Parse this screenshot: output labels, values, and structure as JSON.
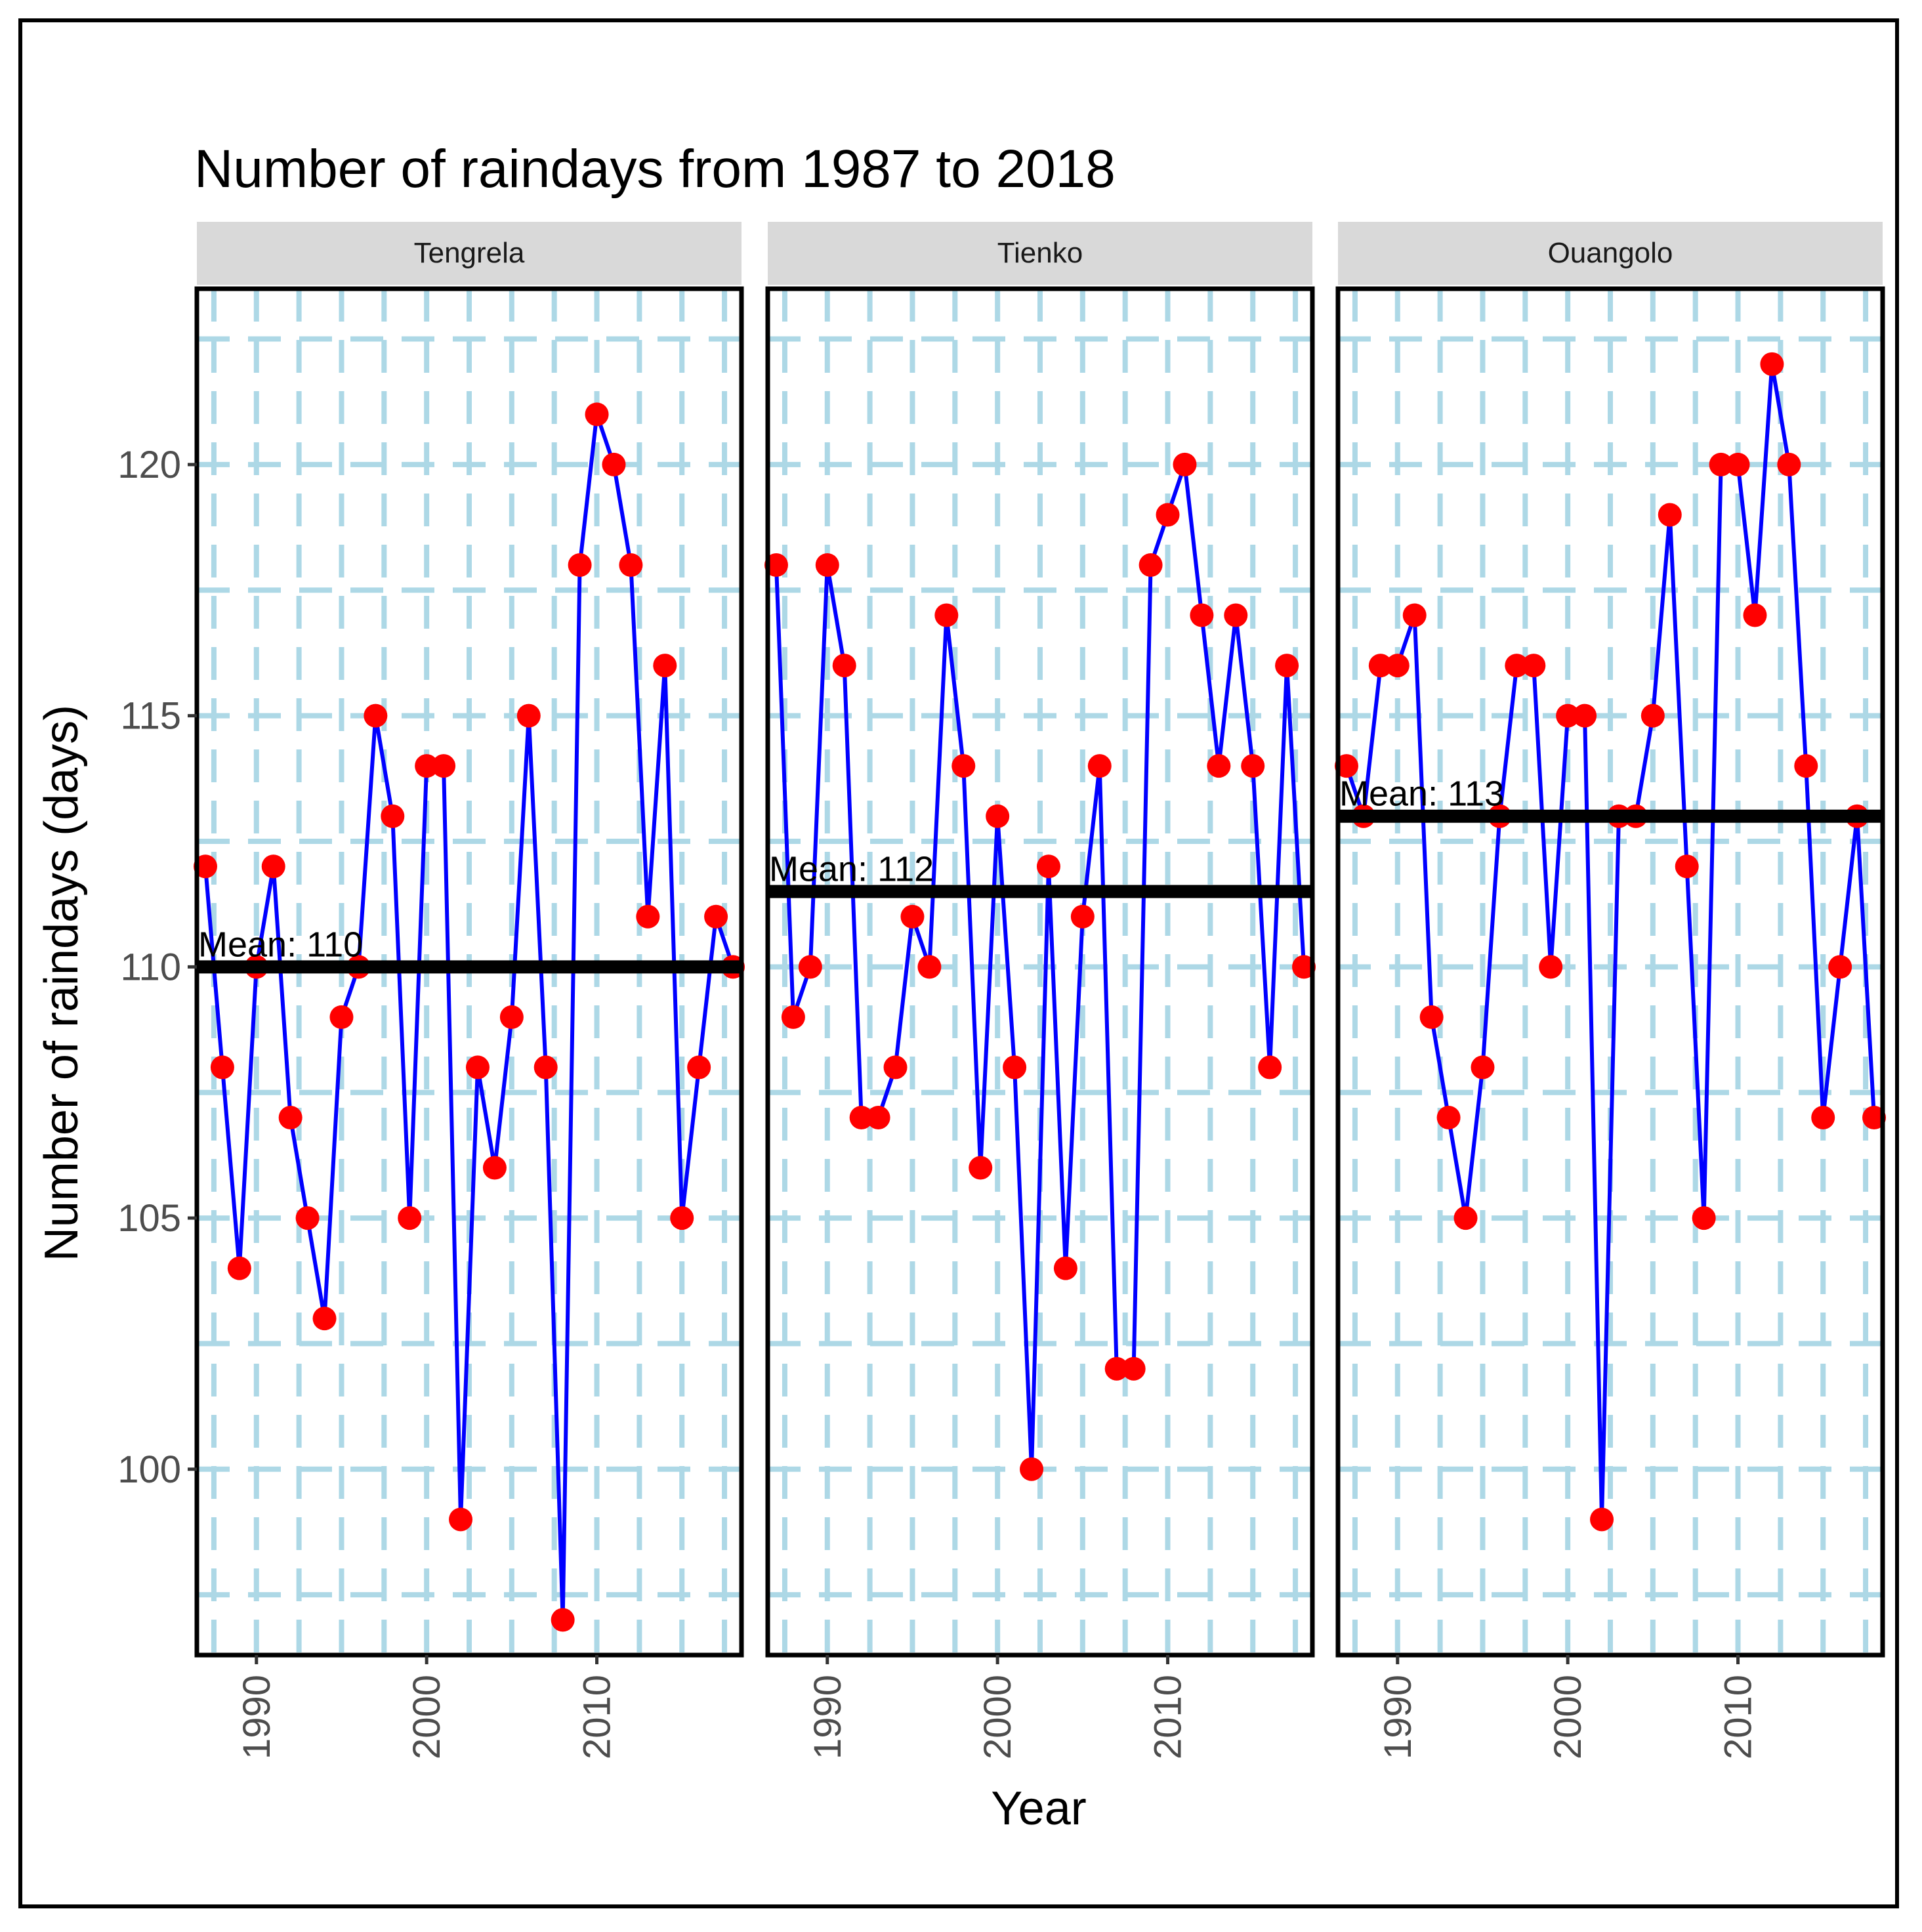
{
  "chart_data": {
    "type": "line",
    "title": "Number of raindays from 1987 to 2018",
    "xlabel": "Year",
    "ylabel": "Number of raindays (days)",
    "xlim": [
      1986.5,
      2018.5
    ],
    "ylim": [
      96.3,
      123.5
    ],
    "x_ticks": [
      1990,
      2000,
      2010
    ],
    "y_ticks": [
      100,
      105,
      110,
      115,
      120
    ],
    "x_tick_labels": [
      "1990",
      "2000",
      "2010"
    ],
    "y_tick_labels": [
      "100",
      "105",
      "110",
      "115",
      "120"
    ],
    "colors": {
      "line": "#0000ff",
      "point": "#ff0000",
      "mean": "#000000",
      "grid": "#add8e6",
      "strip": "#d9d9d9"
    },
    "panels": [
      {
        "name": "Tengrela",
        "mean": 110.0,
        "mean_label": "Mean: 110",
        "x": [
          1987,
          1988,
          1989,
          1990,
          1991,
          1992,
          1993,
          1994,
          1995,
          1996,
          1997,
          1998,
          1999,
          2000,
          2001,
          2002,
          2003,
          2004,
          2005,
          2006,
          2007,
          2008,
          2009,
          2010,
          2011,
          2012,
          2013,
          2014,
          2015,
          2016,
          2017,
          2018
        ],
        "values": [
          112,
          108,
          104,
          110,
          112,
          107,
          105,
          103,
          109,
          110,
          115,
          113,
          105,
          114,
          114,
          99,
          108,
          106,
          109,
          115,
          108,
          97,
          118,
          121,
          120,
          118,
          111,
          116,
          105,
          108,
          111,
          110
        ]
      },
      {
        "name": "Tienko",
        "mean": 111.5,
        "mean_label": "Mean: 112",
        "x": [
          1987,
          1988,
          1989,
          1990,
          1991,
          1992,
          1993,
          1994,
          1995,
          1996,
          1997,
          1998,
          1999,
          2000,
          2001,
          2002,
          2003,
          2004,
          2005,
          2006,
          2007,
          2008,
          2009,
          2010,
          2011,
          2012,
          2013,
          2014,
          2015,
          2016,
          2017,
          2018
        ],
        "values": [
          118,
          109,
          110,
          118,
          116,
          107,
          107,
          108,
          111,
          110,
          117,
          114,
          106,
          113,
          108,
          100,
          112,
          104,
          111,
          114,
          102,
          102,
          118,
          119,
          120,
          117,
          114,
          117,
          114,
          108,
          116,
          110
        ]
      },
      {
        "name": "Ouangolo",
        "mean": 113.0,
        "mean_label": "Mean: 113",
        "x": [
          1987,
          1988,
          1989,
          1990,
          1991,
          1992,
          1993,
          1994,
          1995,
          1996,
          1997,
          1998,
          1999,
          2000,
          2001,
          2002,
          2003,
          2004,
          2005,
          2006,
          2007,
          2008,
          2009,
          2010,
          2011,
          2012,
          2013,
          2014,
          2015,
          2016,
          2017,
          2018
        ],
        "values": [
          114,
          113,
          116,
          116,
          117,
          109,
          107,
          105,
          108,
          113,
          116,
          116,
          110,
          115,
          115,
          99,
          113,
          113,
          115,
          119,
          112,
          105,
          120,
          120,
          117,
          122,
          120,
          114,
          107,
          110,
          113,
          107
        ]
      }
    ]
  }
}
